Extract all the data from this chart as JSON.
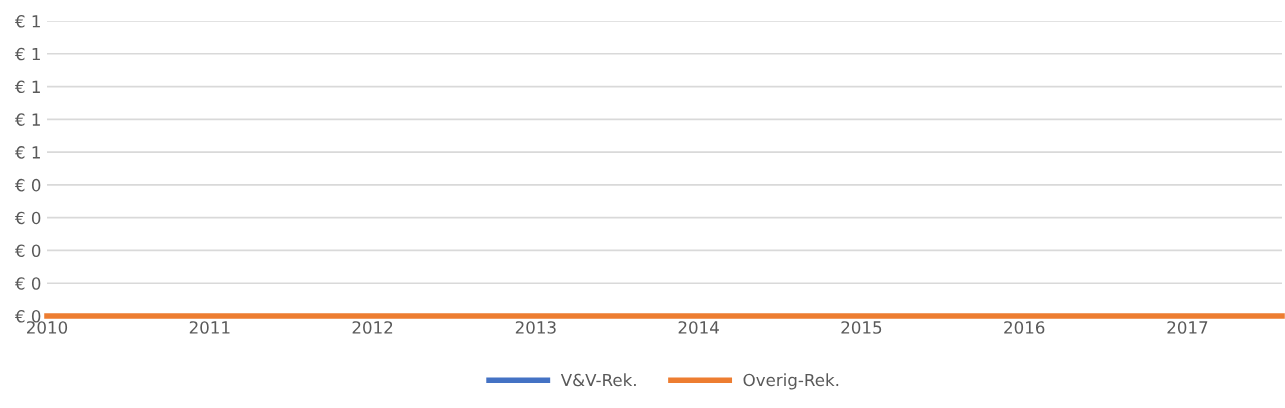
{
  "chart_data": {
    "type": "line",
    "x": [
      "2010",
      "2011",
      "2012",
      "2013",
      "2014",
      "2015",
      "2016",
      "2017",
      "2017-08"
    ],
    "series": [
      {
        "name": "V&V-Rek.",
        "color": "#4472c4",
        "values": [
          null,
          null,
          null,
          null,
          null,
          null,
          null,
          null,
          null
        ]
      },
      {
        "name": "Overig-Rek.",
        "color": "#ed7d31",
        "values": [
          0,
          0,
          0,
          0,
          0,
          0,
          0,
          0,
          0
        ]
      }
    ],
    "xlim": [
      "2010",
      "2017-08"
    ],
    "xticks": [
      "2010",
      "2011",
      "2012",
      "2013",
      "2014",
      "2015",
      "2016",
      "2017"
    ],
    "ylim": [
      0,
      0.9
    ],
    "yticks": [
      {
        "value": 0,
        "label": "€ 0"
      },
      {
        "value": 0.1,
        "label": "€ 0"
      },
      {
        "value": 0.2,
        "label": "€ 0"
      },
      {
        "value": 0.3,
        "label": "€ 0"
      },
      {
        "value": 0.4,
        "label": "€ 0"
      },
      {
        "value": 0.5,
        "label": "€ 1"
      },
      {
        "value": 0.6,
        "label": "€ 1"
      },
      {
        "value": 0.7,
        "label": "€ 1"
      },
      {
        "value": 0.8,
        "label": "€ 1"
      },
      {
        "value": 0.9,
        "label": "€ 1"
      }
    ],
    "grid": "y",
    "legend": "bottom",
    "marker": "none",
    "line_style": "solid"
  }
}
